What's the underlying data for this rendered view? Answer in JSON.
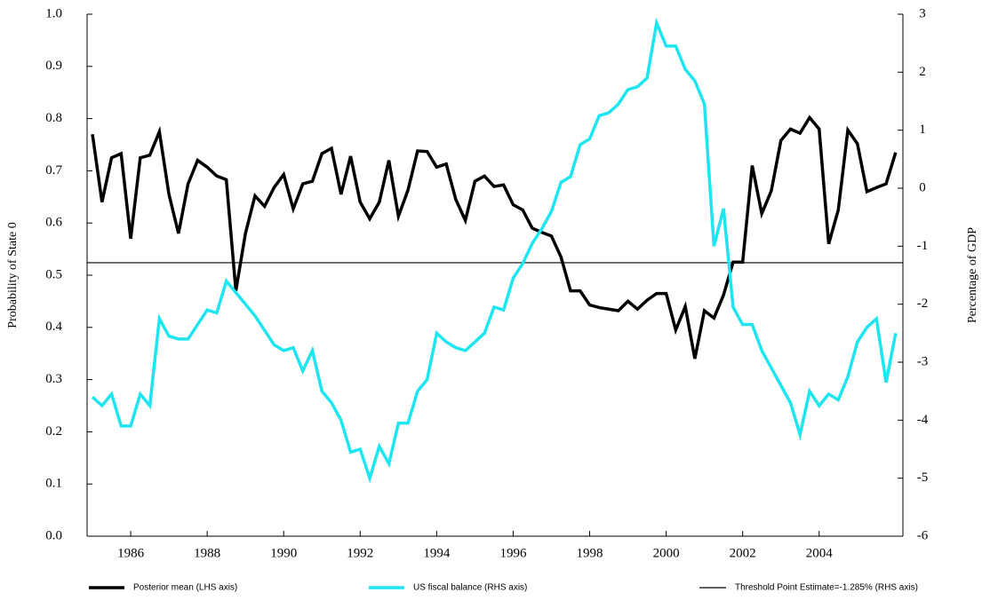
{
  "chart_data": {
    "type": "line",
    "y_label": "Probability of State 0",
    "y2_label": "Percentage of GDP",
    "x": [
      1985,
      1985.25,
      1985.5,
      1985.75,
      1986,
      1986.25,
      1986.5,
      1986.75,
      1987,
      1987.25,
      1987.5,
      1987.75,
      1988,
      1988.25,
      1988.5,
      1988.75,
      1989,
      1989.25,
      1989.5,
      1989.75,
      1990,
      1990.25,
      1990.5,
      1990.75,
      1991,
      1991.25,
      1991.5,
      1991.75,
      1992,
      1992.25,
      1992.5,
      1992.75,
      1993,
      1993.25,
      1993.5,
      1993.75,
      1994,
      1994.25,
      1994.5,
      1994.75,
      1995,
      1995.25,
      1995.5,
      1995.75,
      1996,
      1996.25,
      1996.5,
      1996.75,
      1997,
      1997.25,
      1997.5,
      1997.75,
      1998,
      1998.25,
      1998.5,
      1998.75,
      1999,
      1999.25,
      1999.5,
      1999.75,
      2000,
      2000.25,
      2000.5,
      2000.75,
      2001,
      2001.25,
      2001.5,
      2001.75,
      2002,
      2002.25,
      2002.5,
      2002.75,
      2003,
      2003.25,
      2003.5,
      2003.75,
      2004,
      2004.25,
      2004.5,
      2004.75,
      2005,
      2005.25,
      2005.5,
      2005.75,
      2006
    ],
    "series": [
      {
        "name": "Posterior mean (LHS axis)",
        "color": "#000000",
        "width": 3.5,
        "axis": "y",
        "values": [
          0.77,
          0.64,
          0.725,
          0.733,
          0.57,
          0.725,
          0.73,
          0.775,
          0.655,
          0.58,
          0.675,
          0.72,
          0.707,
          0.69,
          0.683,
          0.47,
          0.58,
          0.652,
          0.632,
          0.668,
          0.693,
          0.627,
          0.675,
          0.68,
          0.733,
          0.743,
          0.655,
          0.728,
          0.64,
          0.608,
          0.64,
          0.72,
          0.613,
          0.663,
          0.738,
          0.737,
          0.707,
          0.713,
          0.645,
          0.605,
          0.68,
          0.69,
          0.67,
          0.673,
          0.635,
          0.625,
          0.59,
          0.582,
          0.575,
          0.535,
          0.47,
          0.47,
          0.443,
          0.438,
          0.435,
          0.432,
          0.45,
          0.435,
          0.452,
          0.465,
          0.465,
          0.395,
          0.44,
          0.34,
          0.432,
          0.418,
          0.462,
          0.525,
          0.525,
          0.71,
          0.618,
          0.662,
          0.758,
          0.78,
          0.772,
          0.802,
          0.78,
          0.56,
          0.625,
          0.778,
          0.752,
          0.66,
          0.668,
          0.675,
          0.735
        ]
      },
      {
        "name": "US fiscal balance (RHS axis)",
        "color": "#1ee6f0",
        "width": 3.5,
        "axis": "y2",
        "values": [
          -3.6,
          -3.75,
          -3.55,
          -4.1,
          -4.1,
          -3.55,
          -3.75,
          -2.25,
          -2.55,
          -2.6,
          -2.6,
          -2.35,
          -2.1,
          -2.15,
          -1.6,
          -1.8,
          -2.0,
          -2.2,
          -2.45,
          -2.7,
          -2.8,
          -2.75,
          -3.15,
          -2.8,
          -3.5,
          -3.7,
          -4.0,
          -4.55,
          -4.5,
          -5.0,
          -4.45,
          -4.75,
          -4.05,
          -4.05,
          -3.5,
          -3.3,
          -2.5,
          -2.65,
          -2.75,
          -2.8,
          -2.65,
          -2.5,
          -2.05,
          -2.1,
          -1.55,
          -1.3,
          -0.95,
          -0.7,
          -0.4,
          0.1,
          0.2,
          0.75,
          0.85,
          1.25,
          1.3,
          1.45,
          1.7,
          1.75,
          1.9,
          2.85,
          2.45,
          2.45,
          2.05,
          1.85,
          1.45,
          -1.0,
          -0.35,
          -2.05,
          -2.35,
          -2.35,
          -2.8,
          -3.1,
          -3.4,
          -3.7,
          -4.25,
          -3.5,
          -3.75,
          -3.55,
          -3.65,
          -3.25,
          -2.65,
          -2.4,
          -2.25,
          -3.35,
          -2.5
        ]
      }
    ],
    "threshold": {
      "name": "Threshold Point Estimate=-1.285% (RHS axis)",
      "value": -1.285,
      "axis": "y2",
      "color": "#000000",
      "width": 1.2
    },
    "xlim": [
      1984.86,
      2006.19
    ],
    "xticks": [
      1986,
      1988,
      1990,
      1992,
      1994,
      1996,
      1998,
      2000,
      2002,
      2004
    ],
    "ylim": [
      0,
      1
    ],
    "yticks": [
      {
        "value": 0,
        "label": "0.0"
      },
      0.1,
      0.2,
      0.3,
      0.4,
      0.5,
      0.6,
      0.7,
      0.8,
      0.9,
      {
        "value": 1,
        "label": "1.0"
      }
    ],
    "y2lim": [
      -6,
      3
    ],
    "y2ticks": [
      -6,
      -5,
      -4,
      -3,
      -2,
      -1,
      0,
      1,
      2,
      3
    ]
  }
}
